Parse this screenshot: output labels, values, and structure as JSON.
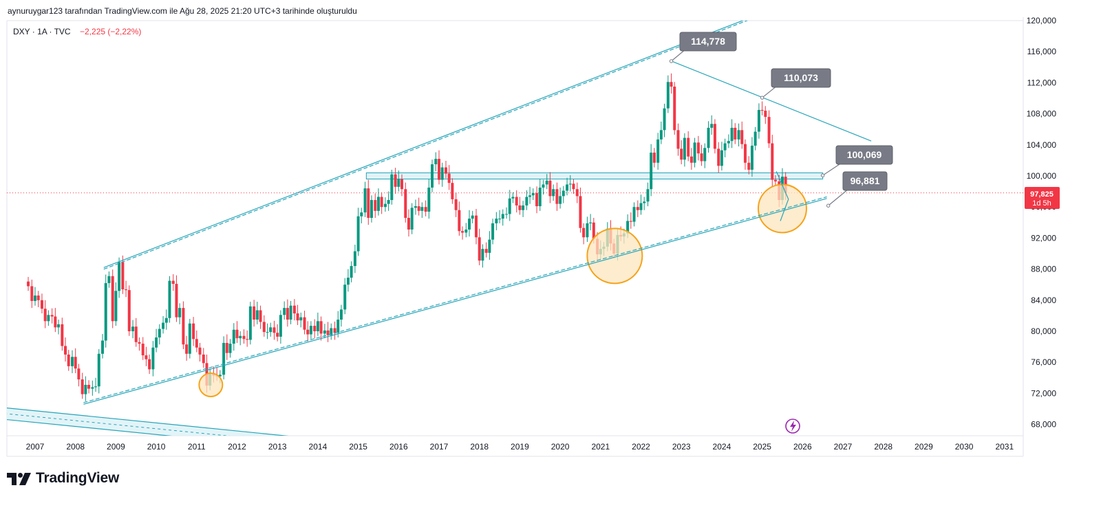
{
  "header": {
    "caption": "aynuruygar123 tarafından TradingView.com ile Ağu 28, 2025 21:20 UTC+3 tarihinde oluşturuldu"
  },
  "legend": {
    "symbol": "DXY · 1A · TVC",
    "change": "−2,225 (−2,22%)"
  },
  "brand": {
    "name": "TradingView"
  },
  "colors": {
    "up": "#089981",
    "down": "#f23645",
    "channel": "#26a4b8",
    "channel_fill": "#dff3f7",
    "highlight_fill": "#fde6bf",
    "highlight_stroke": "#f5a31a",
    "callout_bg": "#787b86",
    "price_badge": "#f23645"
  },
  "chart_data": {
    "type": "candlestick",
    "symbol": "DXY",
    "interval": "1A",
    "source": "TVC",
    "ylim": [
      66.5,
      120
    ],
    "y_ticks": [
      "120,000",
      "116,000",
      "112,000",
      "108,000",
      "104,000",
      "100,000",
      "96,000",
      "92,000",
      "88,000",
      "84,000",
      "80,000",
      "76,000",
      "72,000",
      "68,000"
    ],
    "x_ticks": [
      "2007",
      "2008",
      "2009",
      "2010",
      "2011",
      "2012",
      "2013",
      "2014",
      "2015",
      "2016",
      "2017",
      "2018",
      "2019",
      "2020",
      "2021",
      "2022",
      "2023",
      "2024",
      "2025",
      "2026",
      "2027",
      "2028",
      "2029",
      "2030",
      "2031"
    ],
    "last_price": "97,825",
    "countdown": "1d 5h",
    "callouts": [
      {
        "label": "114,778",
        "date": 2022.75,
        "price": 114.778
      },
      {
        "label": "110,073",
        "date": 2025.0,
        "price": 110.073
      },
      {
        "label": "100,069",
        "date": 2026.5,
        "price": 100.069
      },
      {
        "label": "96,881",
        "date": 2026.5,
        "price": 96.881
      }
    ],
    "closes": [
      [
        2006.83,
        85.8
      ],
      [
        2006.92,
        83.9
      ],
      [
        2007.0,
        84.6
      ],
      [
        2007.08,
        84.0
      ],
      [
        2007.17,
        82.9
      ],
      [
        2007.25,
        81.3
      ],
      [
        2007.33,
        82.1
      ],
      [
        2007.42,
        81.9
      ],
      [
        2007.5,
        80.5
      ],
      [
        2007.58,
        80.9
      ],
      [
        2007.67,
        78.1
      ],
      [
        2007.75,
        77.0
      ],
      [
        2007.83,
        75.5
      ],
      [
        2007.92,
        76.7
      ],
      [
        2008.0,
        75.2
      ],
      [
        2008.08,
        73.8
      ],
      [
        2008.17,
        71.9
      ],
      [
        2008.25,
        73.1
      ],
      [
        2008.33,
        72.6
      ],
      [
        2008.42,
        72.8
      ],
      [
        2008.5,
        72.9
      ],
      [
        2008.58,
        77.1
      ],
      [
        2008.67,
        78.8
      ],
      [
        2008.75,
        86.2
      ],
      [
        2008.83,
        87.1
      ],
      [
        2008.92,
        81.3
      ],
      [
        2009.0,
        85.2
      ],
      [
        2009.08,
        88.9
      ],
      [
        2009.17,
        85.4
      ],
      [
        2009.25,
        85.3
      ],
      [
        2009.33,
        80.0
      ],
      [
        2009.42,
        80.6
      ],
      [
        2009.5,
        78.6
      ],
      [
        2009.58,
        78.4
      ],
      [
        2009.67,
        76.9
      ],
      [
        2009.75,
        76.4
      ],
      [
        2009.83,
        75.1
      ],
      [
        2009.92,
        77.9
      ],
      [
        2010.0,
        79.2
      ],
      [
        2010.08,
        80.3
      ],
      [
        2010.17,
        81.1
      ],
      [
        2010.25,
        81.7
      ],
      [
        2010.33,
        86.5
      ],
      [
        2010.42,
        86.1
      ],
      [
        2010.5,
        81.8
      ],
      [
        2010.58,
        83.0
      ],
      [
        2010.67,
        78.3
      ],
      [
        2010.75,
        77.1
      ],
      [
        2010.83,
        81.0
      ],
      [
        2010.92,
        79.0
      ],
      [
        2011.0,
        77.9
      ],
      [
        2011.08,
        77.0
      ],
      [
        2011.17,
        75.9
      ],
      [
        2011.25,
        73.0
      ],
      [
        2011.33,
        74.6
      ],
      [
        2011.42,
        74.3
      ],
      [
        2011.5,
        74.2
      ],
      [
        2011.58,
        74.4
      ],
      [
        2011.67,
        78.5
      ],
      [
        2011.75,
        77.2
      ],
      [
        2011.83,
        78.4
      ],
      [
        2011.92,
        80.2
      ],
      [
        2012.0,
        79.1
      ],
      [
        2012.08,
        79.4
      ],
      [
        2012.17,
        79.0
      ],
      [
        2012.25,
        78.9
      ],
      [
        2012.33,
        83.2
      ],
      [
        2012.42,
        81.5
      ],
      [
        2012.5,
        82.7
      ],
      [
        2012.58,
        81.2
      ],
      [
        2012.67,
        79.9
      ],
      [
        2012.75,
        79.9
      ],
      [
        2012.83,
        80.5
      ],
      [
        2012.92,
        79.8
      ],
      [
        2013.0,
        79.3
      ],
      [
        2013.08,
        82.1
      ],
      [
        2013.17,
        83.0
      ],
      [
        2013.25,
        81.5
      ],
      [
        2013.33,
        83.3
      ],
      [
        2013.42,
        82.3
      ],
      [
        2013.5,
        81.4
      ],
      [
        2013.58,
        81.8
      ],
      [
        2013.67,
        80.2
      ],
      [
        2013.75,
        79.6
      ],
      [
        2013.83,
        80.7
      ],
      [
        2013.92,
        80.0
      ],
      [
        2014.0,
        81.3
      ],
      [
        2014.08,
        79.7
      ],
      [
        2014.17,
        80.1
      ],
      [
        2014.25,
        79.5
      ],
      [
        2014.33,
        80.4
      ],
      [
        2014.42,
        79.8
      ],
      [
        2014.5,
        81.5
      ],
      [
        2014.58,
        82.8
      ],
      [
        2014.67,
        86.0
      ],
      [
        2014.75,
        86.9
      ],
      [
        2014.83,
        88.4
      ],
      [
        2014.92,
        90.3
      ],
      [
        2015.0,
        94.8
      ],
      [
        2015.08,
        95.3
      ],
      [
        2015.17,
        98.4
      ],
      [
        2015.25,
        94.6
      ],
      [
        2015.33,
        96.9
      ],
      [
        2015.42,
        95.5
      ],
      [
        2015.5,
        97.3
      ],
      [
        2015.58,
        96.0
      ],
      [
        2015.67,
        96.4
      ],
      [
        2015.75,
        96.9
      ],
      [
        2015.83,
        100.2
      ],
      [
        2015.92,
        98.6
      ],
      [
        2016.0,
        99.6
      ],
      [
        2016.08,
        98.3
      ],
      [
        2016.17,
        94.6
      ],
      [
        2016.25,
        93.1
      ],
      [
        2016.33,
        95.9
      ],
      [
        2016.42,
        96.1
      ],
      [
        2016.5,
        95.5
      ],
      [
        2016.58,
        96.0
      ],
      [
        2016.67,
        95.4
      ],
      [
        2016.75,
        98.5
      ],
      [
        2016.83,
        101.5
      ],
      [
        2016.92,
        102.2
      ],
      [
        2017.0,
        99.5
      ],
      [
        2017.08,
        101.1
      ],
      [
        2017.17,
        100.3
      ],
      [
        2017.25,
        99.1
      ],
      [
        2017.33,
        97.0
      ],
      [
        2017.42,
        95.6
      ],
      [
        2017.5,
        92.9
      ],
      [
        2017.58,
        92.7
      ],
      [
        2017.67,
        93.1
      ],
      [
        2017.75,
        94.5
      ],
      [
        2017.83,
        94.9
      ],
      [
        2017.92,
        92.1
      ],
      [
        2018.0,
        89.1
      ],
      [
        2018.08,
        90.6
      ],
      [
        2018.17,
        90.1
      ],
      [
        2018.25,
        91.8
      ],
      [
        2018.33,
        93.9
      ],
      [
        2018.42,
        94.5
      ],
      [
        2018.5,
        94.5
      ],
      [
        2018.58,
        95.1
      ],
      [
        2018.67,
        95.1
      ],
      [
        2018.75,
        97.1
      ],
      [
        2018.83,
        97.3
      ],
      [
        2018.92,
        96.2
      ],
      [
        2019.0,
        95.6
      ],
      [
        2019.08,
        96.2
      ],
      [
        2019.17,
        97.3
      ],
      [
        2019.25,
        97.5
      ],
      [
        2019.33,
        97.8
      ],
      [
        2019.42,
        96.1
      ],
      [
        2019.5,
        98.5
      ],
      [
        2019.58,
        98.9
      ],
      [
        2019.67,
        99.4
      ],
      [
        2019.75,
        97.4
      ],
      [
        2019.83,
        98.3
      ],
      [
        2019.92,
        96.4
      ],
      [
        2020.0,
        97.4
      ],
      [
        2020.08,
        98.1
      ],
      [
        2020.17,
        98.9
      ],
      [
        2020.25,
        99.0
      ],
      [
        2020.33,
        98.3
      ],
      [
        2020.42,
        97.4
      ],
      [
        2020.5,
        93.3
      ],
      [
        2020.58,
        92.1
      ],
      [
        2020.67,
        93.9
      ],
      [
        2020.75,
        94.0
      ],
      [
        2020.83,
        91.9
      ],
      [
        2020.92,
        89.9
      ],
      [
        2021.0,
        90.6
      ],
      [
        2021.08,
        90.9
      ],
      [
        2021.17,
        93.2
      ],
      [
        2021.25,
        91.3
      ],
      [
        2021.33,
        90.0
      ],
      [
        2021.42,
        92.4
      ],
      [
        2021.5,
        92.2
      ],
      [
        2021.58,
        92.6
      ],
      [
        2021.67,
        94.2
      ],
      [
        2021.75,
        94.1
      ],
      [
        2021.83,
        96.0
      ],
      [
        2021.92,
        95.6
      ],
      [
        2022.0,
        96.5
      ],
      [
        2022.08,
        96.7
      ],
      [
        2022.17,
        98.3
      ],
      [
        2022.25,
        103.0
      ],
      [
        2022.33,
        101.7
      ],
      [
        2022.42,
        104.7
      ],
      [
        2022.5,
        105.9
      ],
      [
        2022.58,
        108.7
      ],
      [
        2022.67,
        112.1
      ],
      [
        2022.75,
        111.5
      ],
      [
        2022.83,
        105.9
      ],
      [
        2022.92,
        103.5
      ],
      [
        2023.0,
        102.1
      ],
      [
        2023.08,
        104.9
      ],
      [
        2023.17,
        102.5
      ],
      [
        2023.25,
        101.7
      ],
      [
        2023.33,
        104.3
      ],
      [
        2023.42,
        102.9
      ],
      [
        2023.5,
        101.9
      ],
      [
        2023.58,
        103.6
      ],
      [
        2023.67,
        106.2
      ],
      [
        2023.75,
        106.7
      ],
      [
        2023.83,
        103.5
      ],
      [
        2023.92,
        101.3
      ],
      [
        2024.0,
        103.3
      ],
      [
        2024.08,
        104.2
      ],
      [
        2024.17,
        104.5
      ],
      [
        2024.25,
        106.2
      ],
      [
        2024.33,
        104.7
      ],
      [
        2024.42,
        105.9
      ],
      [
        2024.5,
        104.1
      ],
      [
        2024.58,
        101.7
      ],
      [
        2024.67,
        100.8
      ],
      [
        2024.75,
        103.9
      ],
      [
        2024.83,
        105.7
      ],
      [
        2024.92,
        108.5
      ],
      [
        2025.0,
        108.4
      ],
      [
        2025.08,
        107.6
      ],
      [
        2025.17,
        104.2
      ],
      [
        2025.25,
        99.5
      ],
      [
        2025.33,
        99.3
      ],
      [
        2025.42,
        96.9
      ],
      [
        2025.5,
        99.9
      ],
      [
        2025.58,
        97.8
      ]
    ],
    "annotations": {
      "upper_channel_line": [
        [
          2008.7,
          88.2
        ],
        [
          2027.5,
          126.0
        ]
      ],
      "lower_channel_line": [
        [
          2008.2,
          70.6
        ],
        [
          2026.6,
          97.1
        ]
      ],
      "resistance_zone": [
        99.6,
        100.4
      ],
      "descending_line": [
        [
          2022.75,
          114.8
        ],
        [
          2027.7,
          104.5
        ]
      ],
      "highlight_circles": [
        [
          2011.35,
          73.1
        ],
        [
          2021.35,
          89.7
        ],
        [
          2025.5,
          95.8
        ]
      ]
    }
  }
}
